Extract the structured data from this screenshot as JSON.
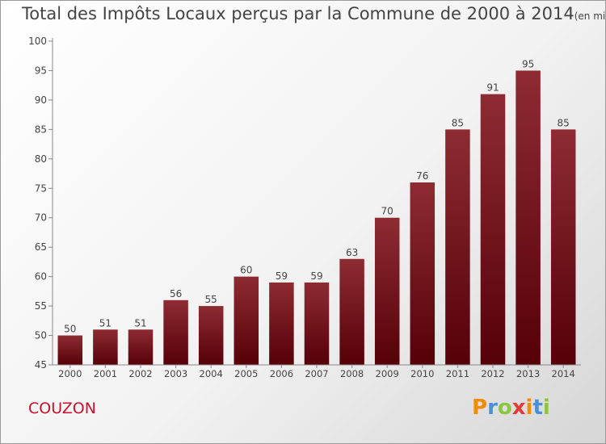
{
  "title": "Total des Impôts Locaux perçus par la Commune de 2000 à 2014",
  "title_unit": "(en milliers d'€)",
  "commune": "COUZON",
  "logo": {
    "letters": [
      "P",
      "r",
      "o",
      "x",
      "i",
      "t",
      "i"
    ],
    "colors": [
      "#f28c00",
      "#4a90d9",
      "#8cc63f",
      "#e53935",
      "#f28c00",
      "#4a90d9",
      "#8cc63f"
    ]
  },
  "chart_data": {
    "type": "bar",
    "categories": [
      "2000",
      "2001",
      "2002",
      "2003",
      "2004",
      "2005",
      "2006",
      "2007",
      "2008",
      "2009",
      "2010",
      "2011",
      "2012",
      "2013",
      "2014"
    ],
    "values": [
      50,
      51,
      51,
      56,
      55,
      60,
      59,
      59,
      63,
      70,
      76,
      85,
      91,
      95,
      85
    ],
    "ylim": [
      45,
      100
    ],
    "yticks": [
      45,
      50,
      55,
      60,
      65,
      70,
      75,
      80,
      85,
      90,
      95,
      100
    ],
    "data_labels": true,
    "grid": false,
    "bar_color": "#7a1a22"
  }
}
